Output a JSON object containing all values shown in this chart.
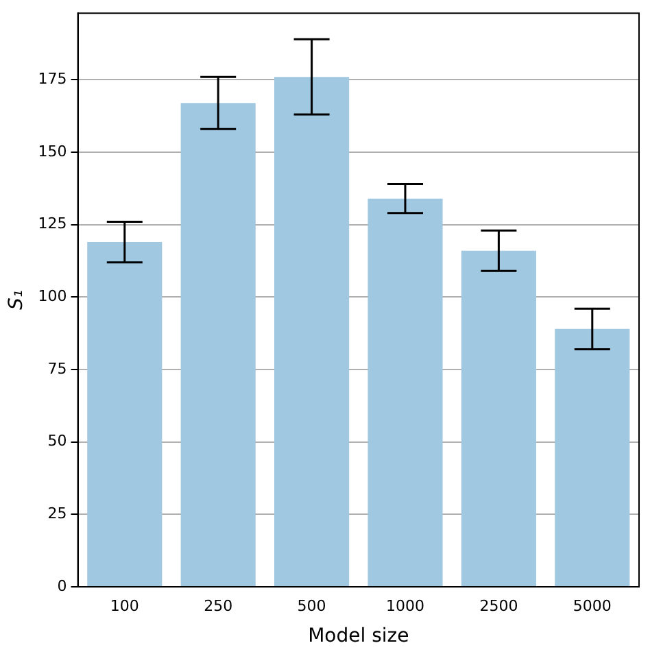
{
  "chart_data": {
    "type": "bar",
    "xlabel": "Model size",
    "ylabel": "S₁",
    "categories": [
      "100",
      "250",
      "500",
      "1000",
      "2500",
      "5000"
    ],
    "values": [
      119,
      167,
      176,
      134,
      116,
      89
    ],
    "errors": [
      [
        112,
        126
      ],
      [
        158,
        176
      ],
      [
        163,
        189
      ],
      [
        129,
        139
      ],
      [
        109,
        123
      ],
      [
        82,
        96
      ]
    ],
    "color": "#a0c8e0",
    "ylim": [
      0,
      198
    ],
    "yticks": [
      0,
      25,
      50,
      75,
      100,
      125,
      150,
      175
    ],
    "grid": "y",
    "legend": false
  }
}
